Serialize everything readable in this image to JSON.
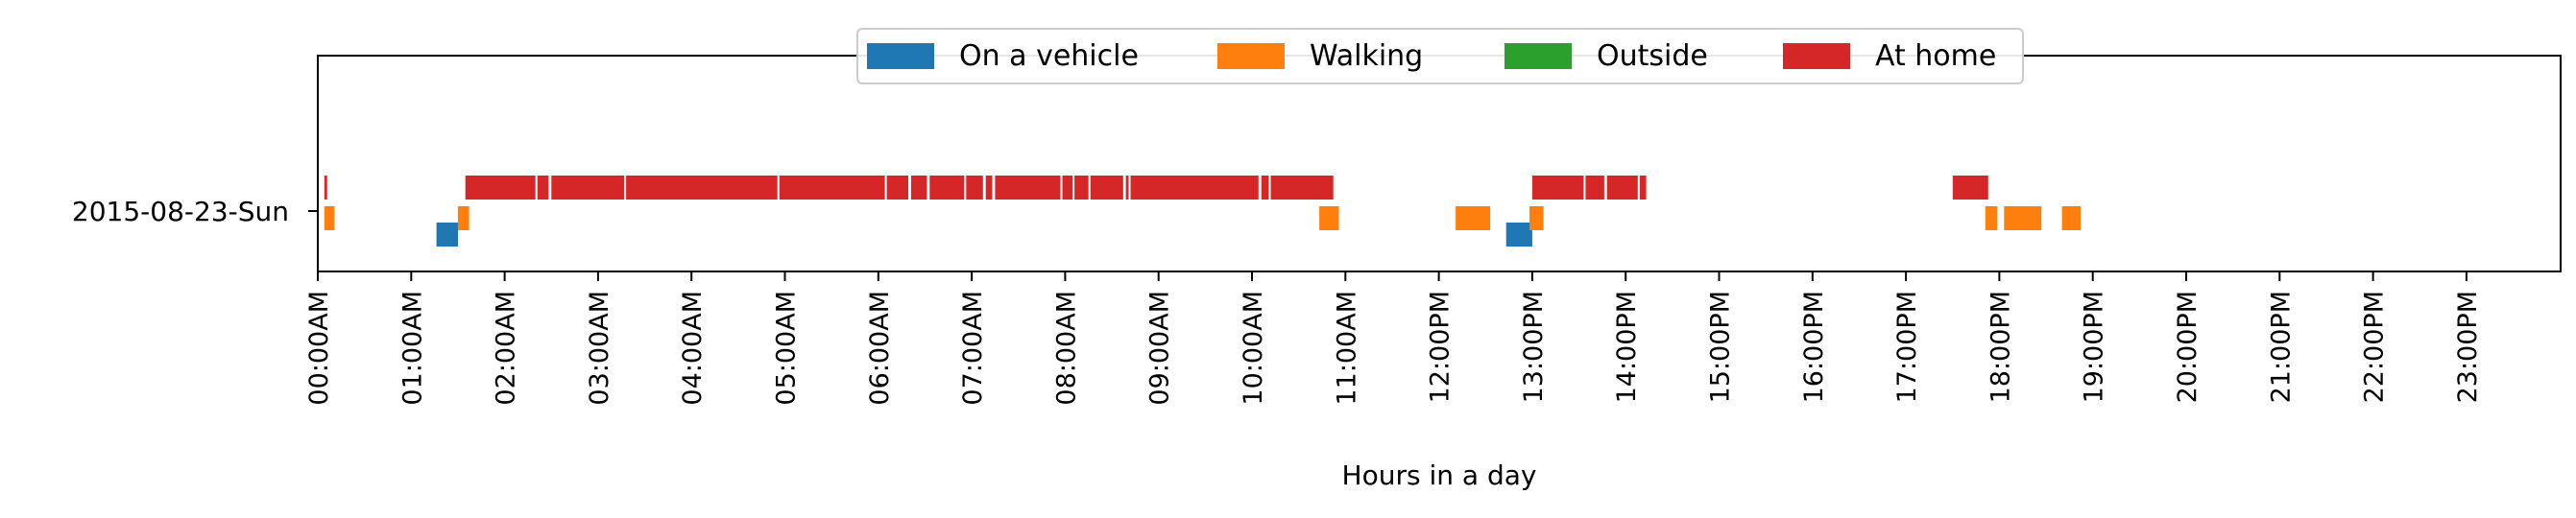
{
  "chart_data": {
    "type": "timeline",
    "title": "",
    "xlabel": "Hours in a day",
    "ylabel": "",
    "xlim": [
      0,
      24
    ],
    "x_ticks": [
      "00:00AM",
      "01:00AM",
      "02:00AM",
      "03:00AM",
      "04:00AM",
      "05:00AM",
      "06:00AM",
      "07:00AM",
      "08:00AM",
      "09:00AM",
      "10:00AM",
      "11:00AM",
      "12:00PM",
      "13:00PM",
      "14:00PM",
      "15:00PM",
      "16:00PM",
      "17:00PM",
      "18:00PM",
      "19:00PM",
      "20:00PM",
      "21:00PM",
      "22:00PM",
      "23:00PM"
    ],
    "y_categories": [
      "2015-08-23-Sun"
    ],
    "grid": false,
    "legend_position": "top-center",
    "series": [
      {
        "name": "On a vehicle",
        "color": "#1f77b4",
        "lane": -1,
        "intervals": [
          [
            1.27,
            1.5
          ],
          [
            12.72,
            13.0
          ]
        ]
      },
      {
        "name": "Walking",
        "color": "#ff7f0e",
        "lane": 0,
        "intervals": [
          [
            0.07,
            0.18
          ],
          [
            1.5,
            1.62
          ],
          [
            10.72,
            10.93
          ],
          [
            12.18,
            12.55
          ],
          [
            12.97,
            13.12
          ],
          [
            17.85,
            17.98
          ],
          [
            18.05,
            18.45
          ],
          [
            18.67,
            18.87
          ]
        ]
      },
      {
        "name": "Outside",
        "color": "#2ca02c",
        "lane": 1,
        "intervals": []
      },
      {
        "name": "At home",
        "color": "#d62728",
        "lane": 1,
        "intervals": [
          [
            0.07,
            0.1
          ],
          [
            1.58,
            2.33
          ],
          [
            2.35,
            2.47
          ],
          [
            2.5,
            3.28
          ],
          [
            3.3,
            4.92
          ],
          [
            4.94,
            6.07
          ],
          [
            6.09,
            6.32
          ],
          [
            6.35,
            6.52
          ],
          [
            6.55,
            6.92
          ],
          [
            6.94,
            7.12
          ],
          [
            7.15,
            7.22
          ],
          [
            7.25,
            7.95
          ],
          [
            7.97,
            8.08
          ],
          [
            8.1,
            8.25
          ],
          [
            8.27,
            8.62
          ],
          [
            8.65,
            8.68
          ],
          [
            8.7,
            10.07
          ],
          [
            10.1,
            10.18
          ],
          [
            10.2,
            10.87
          ],
          [
            13.0,
            13.55
          ],
          [
            13.57,
            13.77
          ],
          [
            13.8,
            14.13
          ],
          [
            14.15,
            14.22
          ],
          [
            17.5,
            17.88
          ]
        ]
      }
    ]
  }
}
